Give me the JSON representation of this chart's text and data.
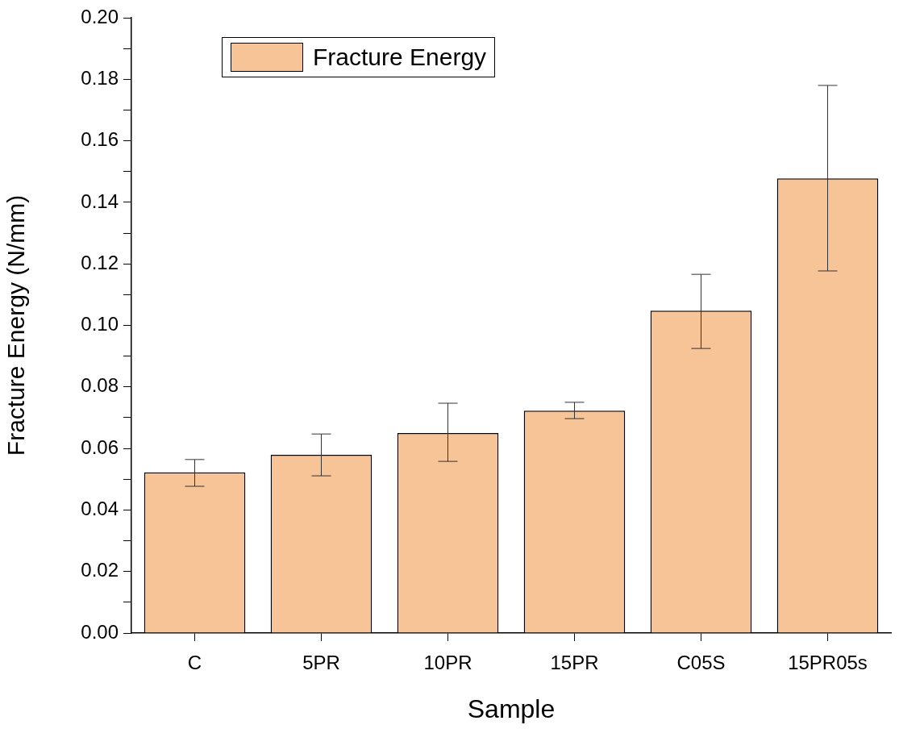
{
  "chart_data": {
    "type": "bar",
    "xlabel": "Sample",
    "ylabel": "Fracture Energy (N/mm)",
    "categories": [
      "C",
      "5PR",
      "10PR",
      "15PR",
      "C05S",
      "15PR05s"
    ],
    "series": [
      {
        "name": "Fracture Energy",
        "color": "#f7c497",
        "values": [
          0.0522,
          0.0579,
          0.065,
          0.0723,
          0.1048,
          0.1478
        ],
        "errors": [
          [
            0.0477,
            0.0564
          ],
          [
            0.0511,
            0.0647
          ],
          [
            0.0558,
            0.0747
          ],
          [
            0.0697,
            0.075
          ],
          [
            0.0925,
            0.1166
          ],
          [
            0.1177,
            0.178
          ]
        ]
      }
    ],
    "ylim": [
      0,
      0.2
    ],
    "yticks": [
      {
        "value": 0,
        "label": "0.00"
      },
      {
        "value": 0.01,
        "label": null
      },
      {
        "value": 0.02,
        "label": "0.02"
      },
      {
        "value": 0.03,
        "label": null
      },
      {
        "value": 0.04,
        "label": "0.04"
      },
      {
        "value": 0.05,
        "label": null
      },
      {
        "value": 0.06,
        "label": "0.06"
      },
      {
        "value": 0.07,
        "label": null
      },
      {
        "value": 0.08,
        "label": "0.08"
      },
      {
        "value": 0.09,
        "label": null
      },
      {
        "value": 0.1,
        "label": "0.10"
      },
      {
        "value": 0.11,
        "label": null
      },
      {
        "value": 0.12,
        "label": "0.12"
      },
      {
        "value": 0.13,
        "label": null
      },
      {
        "value": 0.14,
        "label": "0.14"
      },
      {
        "value": 0.15,
        "label": null
      },
      {
        "value": 0.16,
        "label": "0.16"
      },
      {
        "value": 0.17,
        "label": null
      },
      {
        "value": 0.18,
        "label": "0.18"
      },
      {
        "value": 0.19,
        "label": null
      },
      {
        "value": 0.2,
        "label": "0.20"
      }
    ],
    "grid": false,
    "legend": "top left"
  }
}
